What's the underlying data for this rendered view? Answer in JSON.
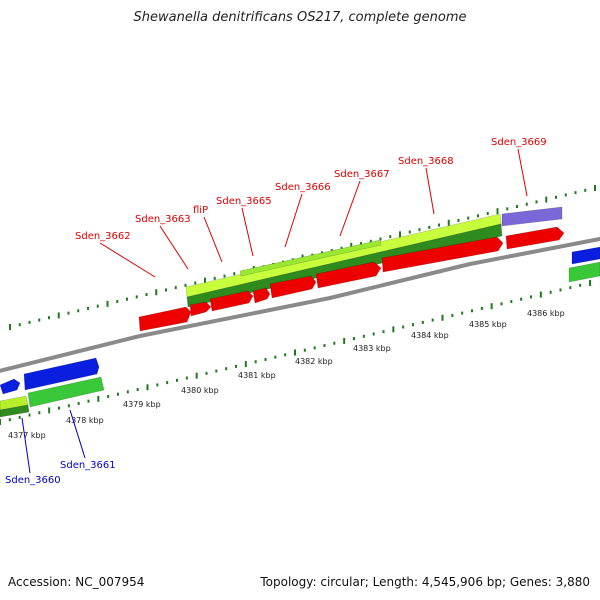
{
  "title": "Shewanella denitrificans OS217, complete genome",
  "footer": {
    "accession": "Accession: NC_007954",
    "summary": "Topology: circular; Length: 4,545,906 bp; Genes: 3,880"
  },
  "colors": {
    "backbone": "#8a8a8a",
    "forward_cds": "#ee0000",
    "reverse_cds": "#0a1ee0",
    "gene_light": "#c8ff3c",
    "gene_dark": "#2e8b1e",
    "gene_green": "#38c838",
    "rna": "#7b68d8",
    "tick": "#1e7a1e",
    "label_red": "#dd0000",
    "label_blue": "#0000cc"
  },
  "kbp_labels": [
    "4377 kbp",
    "4378 kbp",
    "4379 kbp",
    "4380 kbp",
    "4381 kbp",
    "4382 kbp",
    "4383 kbp",
    "4384 kbp",
    "4385 kbp",
    "4386 kbp"
  ],
  "gene_labels_top": [
    "Sden_3662",
    "Sden_3663",
    "fliP",
    "Sden_3665",
    "Sden_3666",
    "Sden_3667",
    "Sden_3668",
    "Sden_3669"
  ],
  "gene_labels_bottom": [
    "Sden_3660",
    "Sden_3661"
  ]
}
